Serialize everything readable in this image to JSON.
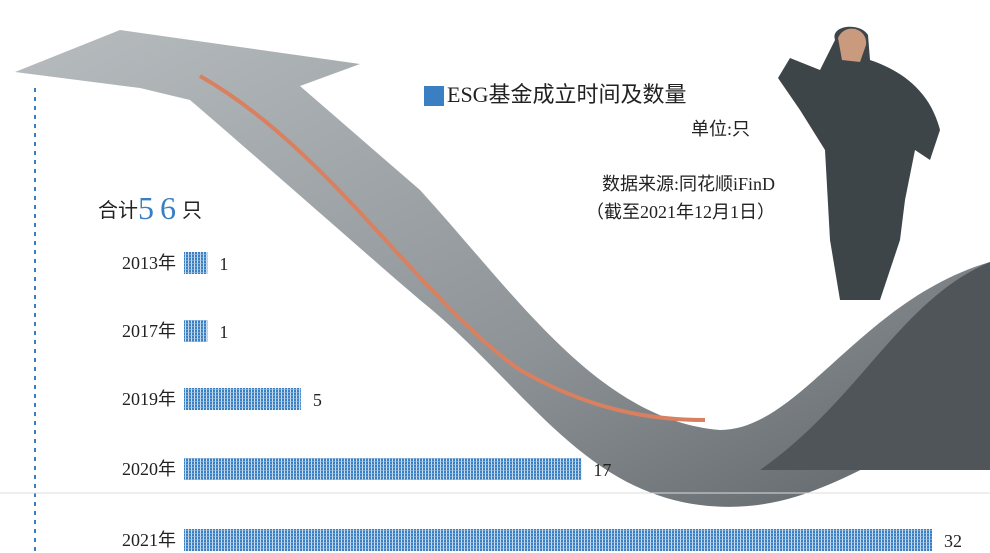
{
  "chart_data": {
    "type": "bar",
    "orientation": "horizontal",
    "title": "ESG基金成立时间及数量",
    "unit": "单位:只",
    "source": "数据来源:同花顺iFinD",
    "note": "（截至2021年12月1日）",
    "total_prefix": "合计",
    "total": 56,
    "total_suffix": "只",
    "categories": [
      "2013年",
      "2017年",
      "2019年",
      "2020年",
      "2021年"
    ],
    "values": [
      1,
      1,
      5,
      17,
      32
    ],
    "color": "#3a7fc1"
  }
}
